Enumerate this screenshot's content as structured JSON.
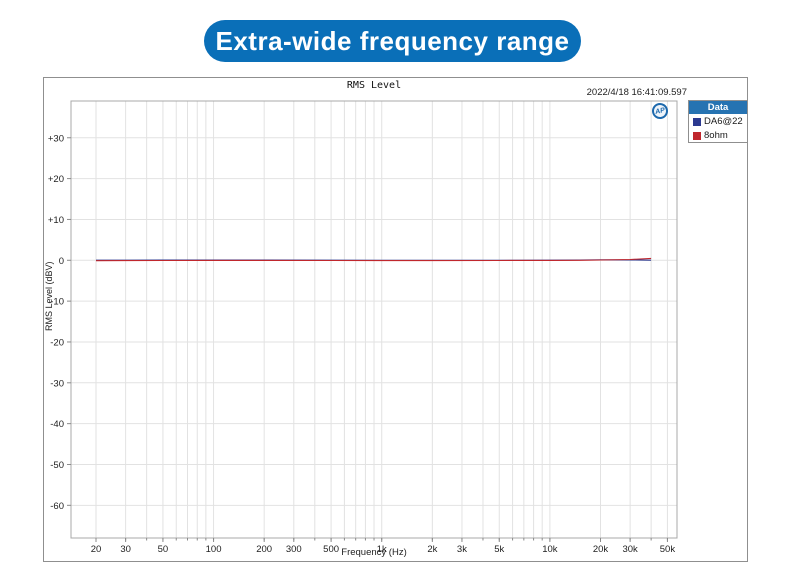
{
  "banner": {
    "label": "Extra-wide frequency range",
    "background_color": "#0a6fb8",
    "text_color": "#ffffff"
  },
  "chart_data": {
    "type": "line",
    "title": "RMS Level",
    "timestamp": "2022/4/18 16:41:09.597",
    "watermark_logo": "AP",
    "xlabel": "Frequency (Hz)",
    "ylabel": "RMS Level (dBV)",
    "x_scale": "log",
    "xlim": [
      14.2,
      57000
    ],
    "ylim": [
      -68,
      39
    ],
    "grid": true,
    "grid_color": "#e2e2e2",
    "plot_border_color": "#a8a8a8",
    "legend_title": "Data",
    "legend_position": "top-right",
    "legend_header_color": "#2673b2",
    "xticks": [
      {
        "v": 20,
        "label": "20"
      },
      {
        "v": 30,
        "label": "30"
      },
      {
        "v": 50,
        "label": "50"
      },
      {
        "v": 100,
        "label": "100"
      },
      {
        "v": 200,
        "label": "200"
      },
      {
        "v": 300,
        "label": "300"
      },
      {
        "v": 500,
        "label": "500"
      },
      {
        "v": 1000,
        "label": "1k"
      },
      {
        "v": 2000,
        "label": "2k"
      },
      {
        "v": 3000,
        "label": "3k"
      },
      {
        "v": 5000,
        "label": "5k"
      },
      {
        "v": 10000,
        "label": "10k"
      },
      {
        "v": 20000,
        "label": "20k"
      },
      {
        "v": 30000,
        "label": "30k"
      },
      {
        "v": 50000,
        "label": "50k"
      }
    ],
    "yticks": [
      {
        "v": 30,
        "label": "+30"
      },
      {
        "v": 20,
        "label": "+20"
      },
      {
        "v": 10,
        "label": "+10"
      },
      {
        "v": 0,
        "label": "0"
      },
      {
        "v": -10,
        "label": "-10"
      },
      {
        "v": -20,
        "label": "-20"
      },
      {
        "v": -30,
        "label": "-30"
      },
      {
        "v": -40,
        "label": "-40"
      },
      {
        "v": -50,
        "label": "-50"
      },
      {
        "v": -60,
        "label": "-60"
      }
    ],
    "series": [
      {
        "name": "DA6@22",
        "color": "#2b3990",
        "points": [
          [
            20,
            0.02
          ],
          [
            30,
            0.03
          ],
          [
            50,
            0.05
          ],
          [
            100,
            0.08
          ],
          [
            200,
            0.06
          ],
          [
            500,
            0.03
          ],
          [
            1000,
            0.0
          ],
          [
            2000,
            0.0
          ],
          [
            5000,
            0.0
          ],
          [
            10000,
            0.03
          ],
          [
            15000,
            0.08
          ],
          [
            20000,
            0.12
          ],
          [
            30000,
            0.1
          ],
          [
            40000,
            0.02
          ]
        ]
      },
      {
        "name": "8ohm",
        "color": "#c0272d",
        "points": [
          [
            20,
            -0.1
          ],
          [
            30,
            -0.08
          ],
          [
            50,
            -0.05
          ],
          [
            100,
            -0.02
          ],
          [
            200,
            -0.04
          ],
          [
            500,
            -0.06
          ],
          [
            1000,
            -0.08
          ],
          [
            2000,
            -0.08
          ],
          [
            5000,
            -0.06
          ],
          [
            10000,
            -0.04
          ],
          [
            15000,
            0.0
          ],
          [
            20000,
            0.06
          ],
          [
            30000,
            0.2
          ],
          [
            40000,
            0.45
          ]
        ]
      }
    ]
  }
}
